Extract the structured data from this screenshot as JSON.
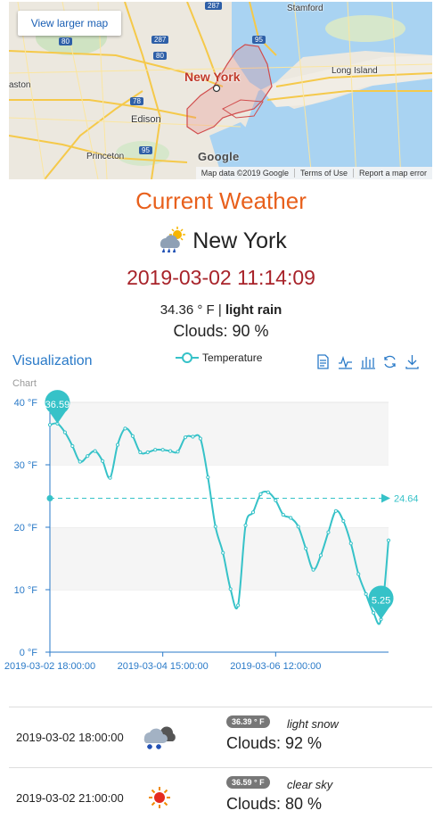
{
  "map": {
    "button_label": "View larger map",
    "city_label": "New York",
    "places": [
      "Stamford",
      "Long Island",
      "aston",
      "Edison",
      "Princeton"
    ],
    "shields": [
      "287",
      "80",
      "287",
      "80",
      "95",
      "78",
      "95"
    ],
    "footer": [
      "Map data ©2019 Google",
      "Terms of Use",
      "Report a map error"
    ],
    "logo_text": "Google"
  },
  "weather": {
    "title": "Current Weather",
    "icon": "rain-sun-icon",
    "city": "New York",
    "datetime": "2019-03-02 11:14:09",
    "temp_prefix": "34.36 ° F | ",
    "description": "light rain",
    "clouds": "Clouds: 90 %"
  },
  "visualization": {
    "title": "Visualization",
    "chart_label": "Chart",
    "toolbox": [
      "data-view-icon",
      "line-chart-icon",
      "bar-chart-icon",
      "restore-icon",
      "download-icon"
    ]
  },
  "chart_data": {
    "type": "line",
    "title": "",
    "series": [
      {
        "name": "Temperature",
        "values": [
          36.4,
          36.6,
          35.2,
          33.0,
          30.5,
          31.4,
          32.2,
          30.6,
          27.9,
          33.2,
          35.8,
          34.6,
          32.0,
          32.0,
          32.4,
          32.4,
          32.2,
          32.1,
          34.4,
          34.5,
          34.2,
          28.0,
          20.1,
          15.9,
          10.1,
          7.5,
          20.3,
          22.4,
          25.3,
          25.6,
          24.3,
          22.0,
          21.5,
          20.1,
          16.6,
          13.2,
          15.5,
          19.2,
          22.6,
          21.0,
          17.4,
          12.5,
          9.3,
          6.3,
          5.25,
          17.9
        ]
      }
    ],
    "x_tick_labels": [
      "2019-03-02 18:00:00",
      "2019-03-04 15:00:00",
      "2019-03-06 12:00:00"
    ],
    "x_start": "2019-03-02 18:00:00",
    "x_interval_hours": 3,
    "y_axis": {
      "min": 0,
      "max": 40,
      "interval": 10,
      "unit": "°F",
      "tick_labels": [
        "0 °F",
        "10 °F",
        "20 °F",
        "30 °F",
        "40 °F"
      ]
    },
    "mark_point": {
      "max": 36.59,
      "min": 5.25
    },
    "mark_line": {
      "average": 24.64
    },
    "grid": true,
    "legend": "top-center"
  },
  "forecast": [
    {
      "datetime": "2019-03-02 18:00:00",
      "icon": "snow-cloud-icon",
      "temp_badge": "36.39 ° F",
      "description": "light snow",
      "clouds": "Clouds: 92 %"
    },
    {
      "datetime": "2019-03-02 21:00:00",
      "icon": "sun-icon",
      "temp_badge": "36.59 ° F",
      "description": "clear sky",
      "clouds": "Clouds: 80 %"
    }
  ],
  "colors": {
    "title": "#e8601c",
    "datetime": "#a8232a",
    "accent": "#2a7ac8",
    "series": "#36c2c8"
  }
}
